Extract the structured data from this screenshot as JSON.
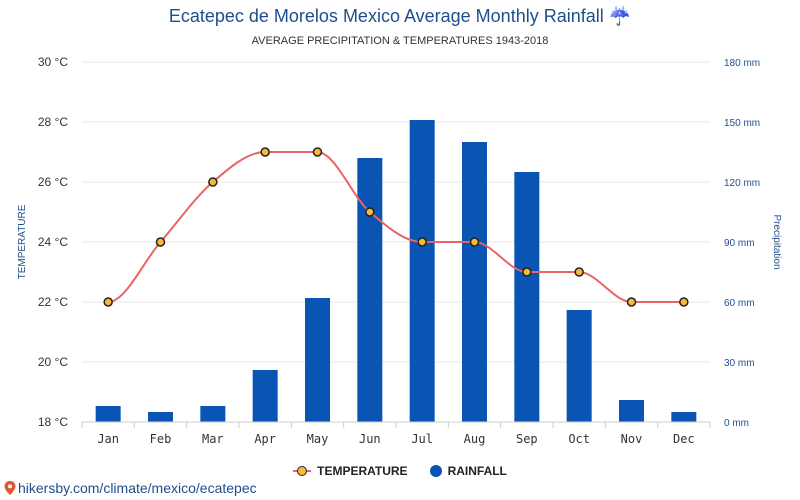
{
  "title": "Ecatepec de Morelos Mexico Average Monthly Rainfall ☔",
  "subtitle": "AVERAGE PRECIPITATION & TEMPERATURES 1943-2018",
  "legend": {
    "temperature_label": "TEMPERATURE",
    "rainfall_label": "RAINFALL"
  },
  "footer": {
    "url": "hikersby.com/climate/mexico/ecatepec",
    "icon": "map-pin-icon"
  },
  "colors": {
    "bar": "#0a54b4",
    "line": "#e86464",
    "marker": "#f5b93b",
    "title": "#1f4e8c"
  },
  "chart_data": {
    "type": "bar",
    "categories": [
      "Jan",
      "Feb",
      "Mar",
      "Apr",
      "May",
      "Jun",
      "Jul",
      "Aug",
      "Sep",
      "Oct",
      "Nov",
      "Dec"
    ],
    "series": [
      {
        "name": "RAINFALL",
        "type": "bar",
        "axis": "right",
        "unit": "mm",
        "values": [
          8,
          5,
          8,
          26,
          62,
          132,
          151,
          140,
          125,
          56,
          11,
          5
        ]
      },
      {
        "name": "TEMPERATURE",
        "type": "line",
        "axis": "left",
        "unit": "°C",
        "values": [
          22,
          24,
          26,
          27,
          27,
          25,
          24,
          24,
          23,
          23,
          22,
          22
        ]
      }
    ],
    "ylabel": "TEMPERATURE",
    "y2label": "Precipitation",
    "ylim": [
      18,
      30
    ],
    "y2lim": [
      0,
      180
    ],
    "y_ticks": [
      "18 °C",
      "20 °C",
      "22 °C",
      "24 °C",
      "26 °C",
      "28 °C",
      "30 °C"
    ],
    "y2_ticks": [
      "0 mm",
      "30 mm",
      "60 mm",
      "90 mm",
      "120 mm",
      "150 mm",
      "180 mm"
    ],
    "grid": true,
    "legend_position": "bottom"
  }
}
